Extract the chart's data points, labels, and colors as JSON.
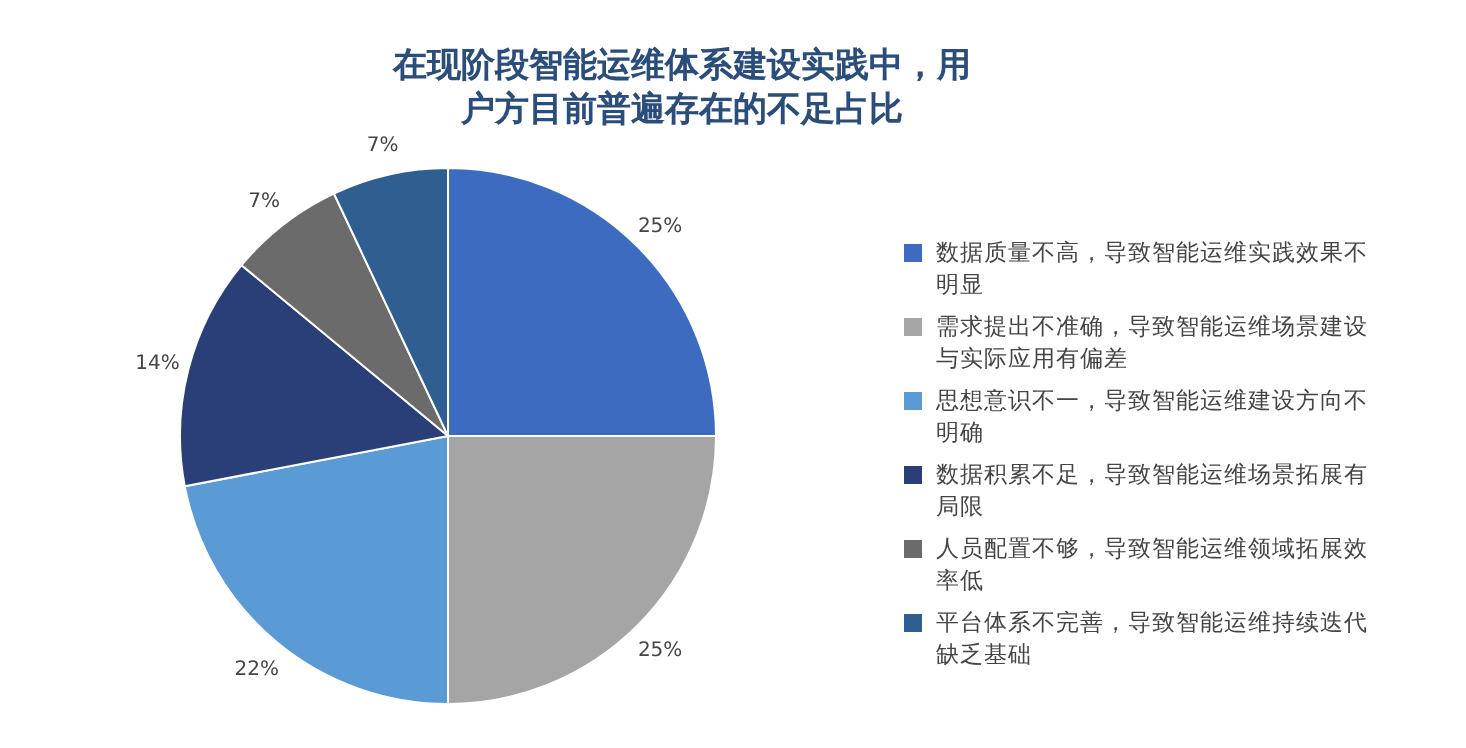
{
  "chart_data": {
    "type": "pie",
    "title": "在现阶段智能运维体系建设实践中，用户方目前普遍存在的不足占比",
    "categories": [
      "数据质量不高，导致智能运维实践效果不明显",
      "需求提出不准确，导致智能运维场景建设与实际应用有偏差",
      "思想意识不一，导致智能运维建设方向不明确",
      "数据积累不足，导致智能运维场景拓展有局限",
      "人员配置不够，导致智能运维领域拓展效率低",
      "平台体系不完善，导致智能运维持续迭代缺乏基础"
    ],
    "values": [
      25,
      25,
      22,
      14,
      7,
      7
    ],
    "colors": [
      "#3d6bbf",
      "#a5a5a5",
      "#5b9bd5",
      "#2a3f78",
      "#6b6b6b",
      "#2f5f91"
    ],
    "value_labels": [
      "25%",
      "25%",
      "22%",
      "14%",
      "7%",
      "7%"
    ],
    "legend": "right"
  }
}
